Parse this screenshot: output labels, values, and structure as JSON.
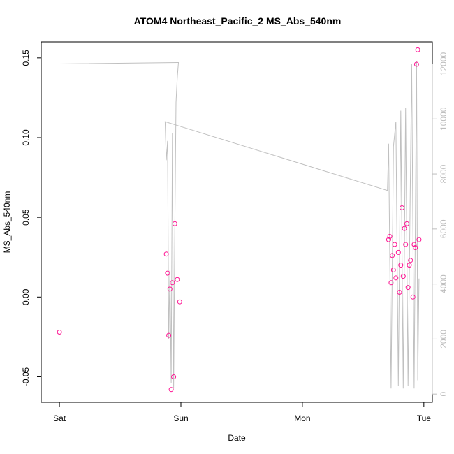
{
  "chart_data": {
    "type": "scatter",
    "title": "ATOM4 Northeast_Pacific_2 MS_Abs_540nm",
    "xlabel": "Date",
    "ylabel": "MS_Abs_540nm",
    "x_ticks": [
      {
        "label": "Sat",
        "day": 0
      },
      {
        "label": "Sun",
        "day": 1
      },
      {
        "label": "Mon",
        "day": 2
      },
      {
        "label": "Tue",
        "day": 3
      }
    ],
    "xlim_days": [
      -0.15,
      3.07
    ],
    "ylim": [
      -0.066,
      0.16
    ],
    "y_ticks": [
      -0.05,
      0.0,
      0.05,
      0.1,
      0.15
    ],
    "y_tick_labels": [
      "-0.05",
      "0.00",
      "0.05",
      "0.10",
      "0.15"
    ],
    "y2_ticks": [
      0,
      2000,
      4000,
      6000,
      8000,
      10000,
      12000
    ],
    "y2_tick_labels": [
      "0",
      "2000",
      "4000",
      "6000",
      "8000",
      "10000",
      "12000"
    ],
    "y2lim": [
      -300,
      12800
    ],
    "colors": {
      "points": "#ff1493",
      "secondary_line": "#c0c0c0",
      "axis": "#000000",
      "right_axis": "#bdbdbd"
    },
    "series": [
      {
        "marker": "open-circle",
        "points": [
          {
            "day": 0.0,
            "y": -0.022
          },
          {
            "day": 0.88,
            "y": 0.027
          },
          {
            "day": 0.89,
            "y": 0.015
          },
          {
            "day": 0.9,
            "y": -0.024
          },
          {
            "day": 0.91,
            "y": 0.005
          },
          {
            "day": 0.92,
            "y": -0.058
          },
          {
            "day": 0.93,
            "y": 0.009
          },
          {
            "day": 0.94,
            "y": -0.05
          },
          {
            "day": 0.95,
            "y": 0.046
          },
          {
            "day": 0.97,
            "y": 0.011
          },
          {
            "day": 0.99,
            "y": -0.003
          },
          {
            "day": 2.71,
            "y": 0.036
          },
          {
            "day": 2.72,
            "y": 0.038
          },
          {
            "day": 2.73,
            "y": 0.009
          },
          {
            "day": 2.74,
            "y": 0.026
          },
          {
            "day": 2.75,
            "y": 0.017
          },
          {
            "day": 2.76,
            "y": 0.033
          },
          {
            "day": 2.77,
            "y": 0.012
          },
          {
            "day": 2.79,
            "y": 0.028
          },
          {
            "day": 2.8,
            "y": 0.003
          },
          {
            "day": 2.81,
            "y": 0.02
          },
          {
            "day": 2.82,
            "y": 0.056
          },
          {
            "day": 2.83,
            "y": 0.013
          },
          {
            "day": 2.84,
            "y": 0.043
          },
          {
            "day": 2.85,
            "y": 0.033
          },
          {
            "day": 2.86,
            "y": 0.046
          },
          {
            "day": 2.87,
            "y": 0.006
          },
          {
            "day": 2.88,
            "y": 0.02
          },
          {
            "day": 2.89,
            "y": 0.023
          },
          {
            "day": 2.91,
            "y": 0.0
          },
          {
            "day": 2.92,
            "y": 0.033
          },
          {
            "day": 2.93,
            "y": 0.031
          },
          {
            "day": 2.94,
            "y": 0.146
          },
          {
            "day": 2.95,
            "y": 0.155
          },
          {
            "day": 2.96,
            "y": 0.036
          }
        ]
      },
      {
        "line": true,
        "axis": "right",
        "points": [
          {
            "day": 0.0,
            "y": 12000
          },
          {
            "day": 0.98,
            "y": 12050
          },
          {
            "day": 0.97,
            "y": 11500
          },
          {
            "day": 0.96,
            "y": 10600
          },
          {
            "day": 0.95,
            "y": 6000
          },
          {
            "day": 0.94,
            "y": 200
          },
          {
            "day": 0.93,
            "y": 9500
          },
          {
            "day": 0.92,
            "y": 400
          },
          {
            "day": 0.91,
            "y": 4500
          },
          {
            "day": 0.9,
            "y": 2000
          },
          {
            "day": 0.89,
            "y": 9200
          },
          {
            "day": 0.88,
            "y": 8500
          },
          {
            "day": 0.87,
            "y": 9900
          },
          {
            "day": 2.7,
            "y": 7400
          },
          {
            "day": 2.71,
            "y": 9100
          },
          {
            "day": 2.73,
            "y": 200
          },
          {
            "day": 2.75,
            "y": 9000
          },
          {
            "day": 2.77,
            "y": 9900
          },
          {
            "day": 2.79,
            "y": 300
          },
          {
            "day": 2.81,
            "y": 10300
          },
          {
            "day": 2.83,
            "y": 200
          },
          {
            "day": 2.85,
            "y": 10400
          },
          {
            "day": 2.87,
            "y": 300
          },
          {
            "day": 2.9,
            "y": 12000
          },
          {
            "day": 2.92,
            "y": 200
          },
          {
            "day": 2.94,
            "y": 12100
          },
          {
            "day": 2.95,
            "y": 500
          },
          {
            "day": 2.96,
            "y": 4200
          }
        ]
      }
    ]
  }
}
